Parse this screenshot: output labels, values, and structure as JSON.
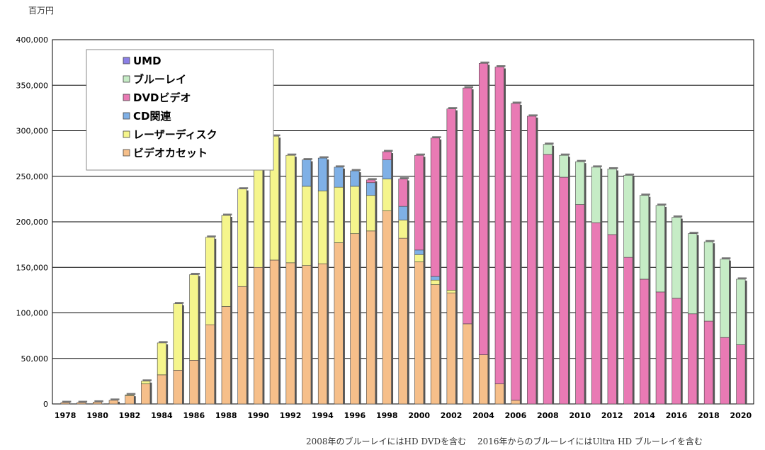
{
  "chart_data": {
    "type": "bar",
    "stacked": true,
    "unit_label": "百万円",
    "ylim": [
      0,
      400000
    ],
    "y_ticks": [
      "0",
      "50,000",
      "100,000",
      "150,000",
      "200,000",
      "250,000",
      "300,000",
      "350,000",
      "400,000"
    ],
    "grid": true,
    "legend_position": "top-left",
    "categories": [
      "1978",
      "1979",
      "1980",
      "1981",
      "1982",
      "1983",
      "1984",
      "1985",
      "1986",
      "1987",
      "1988",
      "1989",
      "1990",
      "1991",
      "1992",
      "1993",
      "1994",
      "1995",
      "1996",
      "1997",
      "1998",
      "1999",
      "2000",
      "2001",
      "2002",
      "2003",
      "2004",
      "2005",
      "2006",
      "2007",
      "2008",
      "2009",
      "2010",
      "2011",
      "2012",
      "2013",
      "2014",
      "2015",
      "2016",
      "2017",
      "2018",
      "2019",
      "2020"
    ],
    "x_tick_labels": [
      "1978",
      "",
      "1980",
      "",
      "1982",
      "",
      "1984",
      "",
      "1986",
      "",
      "1988",
      "",
      "1990",
      "",
      "1992",
      "",
      "1994",
      "",
      "1996",
      "",
      "1998",
      "",
      "2000",
      "",
      "2002",
      "",
      "2004",
      "",
      "2006",
      "",
      "2008",
      "",
      "2010",
      "",
      "2012",
      "",
      "2014",
      "",
      "2016",
      "",
      "2018",
      "",
      "2020"
    ],
    "series": [
      {
        "name": "ビデオカセット",
        "color": "#f6bf8a",
        "values": [
          1500,
          1500,
          2000,
          4000,
          9000,
          22000,
          32000,
          37000,
          48000,
          87000,
          107000,
          129000,
          150000,
          158000,
          155000,
          152000,
          154000,
          177000,
          187000,
          190000,
          212000,
          182000,
          156000,
          131000,
          122000,
          88000,
          54000,
          22000,
          4000,
          0,
          0,
          0,
          0,
          0,
          0,
          0,
          0,
          0,
          0,
          0,
          0,
          0,
          0
        ]
      },
      {
        "name": "レーザーディスク",
        "color": "#f5f58c",
        "values": [
          0,
          0,
          0,
          0,
          1000,
          3000,
          35000,
          73000,
          94000,
          96000,
          100000,
          107000,
          136000,
          136000,
          118000,
          87000,
          80000,
          61000,
          52000,
          39000,
          35000,
          20000,
          8000,
          5000,
          3000,
          0,
          0,
          0,
          0,
          0,
          0,
          0,
          0,
          0,
          0,
          0,
          0,
          0,
          0,
          0,
          0,
          0,
          0
        ]
      },
      {
        "name": "CD関連",
        "color": "#7fb0e6",
        "values": [
          0,
          0,
          0,
          0,
          0,
          0,
          0,
          0,
          0,
          0,
          0,
          0,
          0,
          0,
          0,
          29000,
          36000,
          22000,
          17000,
          14000,
          21000,
          15000,
          5000,
          4000,
          0,
          0,
          0,
          0,
          0,
          0,
          0,
          0,
          0,
          0,
          0,
          0,
          0,
          0,
          0,
          0,
          0,
          0,
          0
        ]
      },
      {
        "name": "DVDビデオ",
        "color": "#e97ab4",
        "values": [
          0,
          0,
          0,
          0,
          0,
          0,
          0,
          0,
          0,
          0,
          0,
          0,
          0,
          0,
          0,
          0,
          0,
          0,
          0,
          3000,
          9000,
          30000,
          104000,
          152000,
          199000,
          259000,
          320000,
          348000,
          326000,
          316000,
          274000,
          249000,
          219000,
          199000,
          186000,
          161000,
          137000,
          123000,
          116000,
          99000,
          91000,
          73000,
          65000
        ]
      },
      {
        "name": "ブルーレイ",
        "color": "#c6ecc6",
        "values": [
          0,
          0,
          0,
          0,
          0,
          0,
          0,
          0,
          0,
          0,
          0,
          0,
          0,
          0,
          0,
          0,
          0,
          0,
          0,
          0,
          0,
          0,
          0,
          0,
          0,
          0,
          0,
          0,
          0,
          0,
          11000,
          24000,
          47000,
          61000,
          72000,
          90000,
          92000,
          95000,
          89000,
          88000,
          87000,
          86000,
          72000
        ]
      },
      {
        "name": "UMD",
        "color": "#8b7fe6",
        "values": [
          0,
          0,
          0,
          0,
          0,
          0,
          0,
          0,
          0,
          0,
          0,
          0,
          0,
          0,
          0,
          0,
          0,
          0,
          0,
          0,
          0,
          0,
          0,
          0,
          0,
          0,
          0,
          0,
          0,
          0,
          0,
          0,
          0,
          0,
          0,
          0,
          0,
          0,
          0,
          0,
          0,
          0,
          0
        ]
      }
    ],
    "legend_order": [
      "UMD",
      "ブルーレイ",
      "DVDビデオ",
      "CD関連",
      "レーザーディスク",
      "ビデオカセット"
    ],
    "footnotes": [
      "2008年のブルーレイにはHD DVDを含む",
      "2016年からのブルーレイにはUltra HD ブルーレイを含む"
    ]
  }
}
